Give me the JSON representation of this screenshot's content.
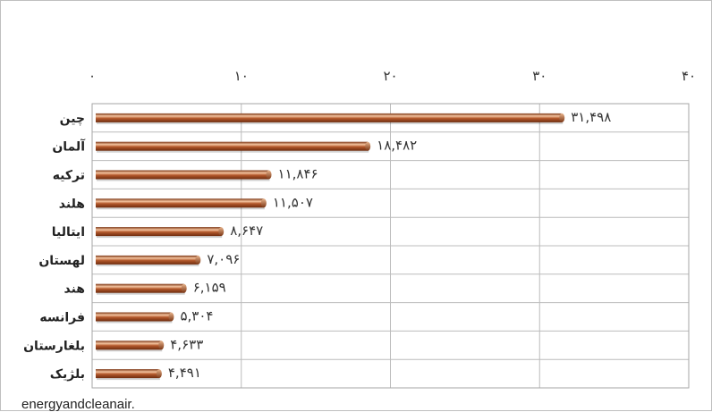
{
  "chart_data": {
    "type": "bar",
    "orientation": "horizontal",
    "title": "",
    "xlabel": "",
    "ylabel": "",
    "xlim": [
      0,
      40
    ],
    "x_ticks": [
      {
        "value": 0,
        "label": "۰"
      },
      {
        "value": 10,
        "label": "۱۰"
      },
      {
        "value": 20,
        "label": "۲۰"
      },
      {
        "value": 30,
        "label": "۳۰"
      },
      {
        "value": 40,
        "label": "۴۰"
      }
    ],
    "x_axis_position": "top",
    "grid": true,
    "categories": [
      "چین",
      "آلمان",
      "ترکیه",
      "هلند",
      "ایتالیا",
      "لهستان",
      "هند",
      "فرانسه",
      "بلغارستان",
      "بلژیک"
    ],
    "values": [
      31.498,
      18.482,
      11.846,
      11.507,
      8.647,
      7.096,
      6.159,
      5.304,
      4.633,
      4.491
    ],
    "data_labels": [
      "۳۱,۴۹۸",
      "۱۸,۴۸۲",
      "۱۱,۸۴۶",
      "۱۱,۵۰۷",
      "۸,۶۴۷",
      "۷,۰۹۶",
      "۶,۱۵۹",
      "۵,۳۰۴",
      "۴,۶۳۳",
      "۴,۴۹۱"
    ],
    "bar_color": "#b4592c",
    "bar_highlight_color": "#f4c4a0"
  },
  "source_note": "energyandcleanair."
}
